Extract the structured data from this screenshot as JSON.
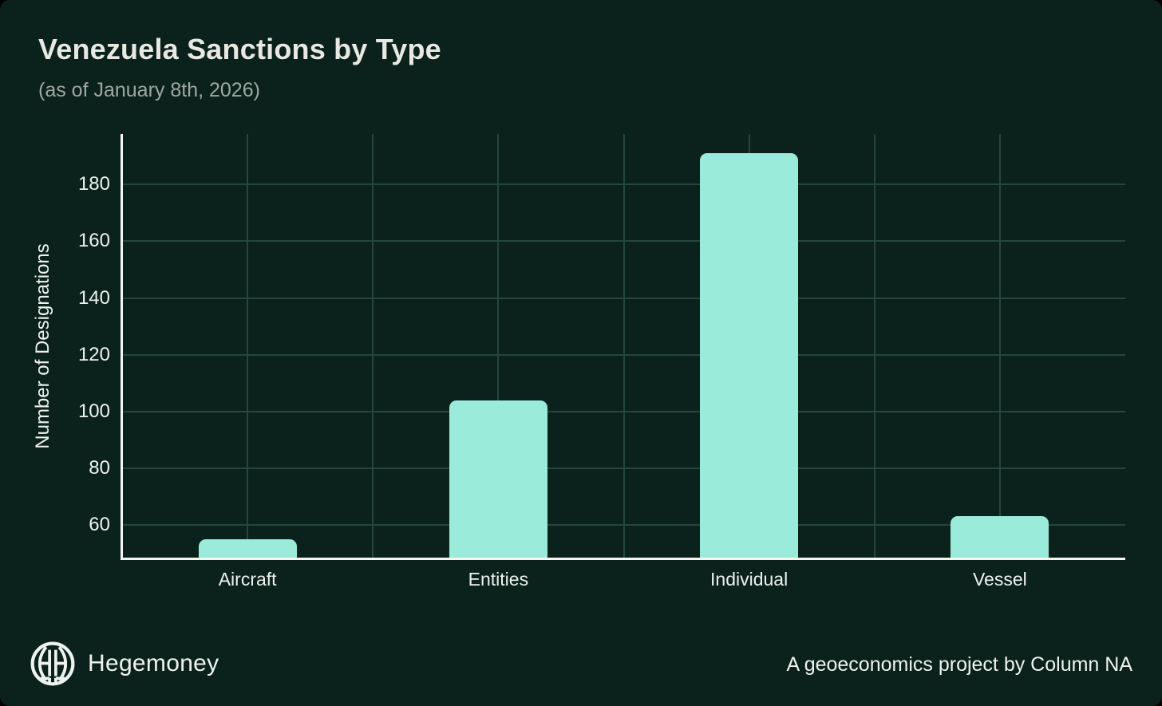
{
  "header": {
    "title": "Venezuela Sanctions by Type",
    "subtitle": "(as of January 8th, 2026)"
  },
  "chart_data": {
    "type": "bar",
    "title": "Venezuela Sanctions by Type",
    "subtitle": "(as of January 8th, 2026)",
    "categories": [
      "Aircraft",
      "Entities",
      "Individual",
      "Vessel"
    ],
    "values": [
      55,
      104,
      191,
      63
    ],
    "xlabel": "",
    "ylabel": "Number of Designations",
    "yticks": [
      60,
      80,
      100,
      120,
      140,
      160,
      180
    ],
    "ylim": [
      48.2,
      197.8
    ],
    "grid": true,
    "legend_position": "none",
    "colors": {
      "background": "#0A221B",
      "bar": "#9AEBD9",
      "grid": "#25463A",
      "axis_spine": "#F2F5F2",
      "tick_label": "#EEF2EF",
      "title": "#E9E8E3",
      "subtitle": "#A0A8A2"
    }
  },
  "footer": {
    "brand": "Hegemoney",
    "logo_icon": "hegemoney-globe-icon",
    "credit": "A geoeconomics project by Column NA"
  }
}
